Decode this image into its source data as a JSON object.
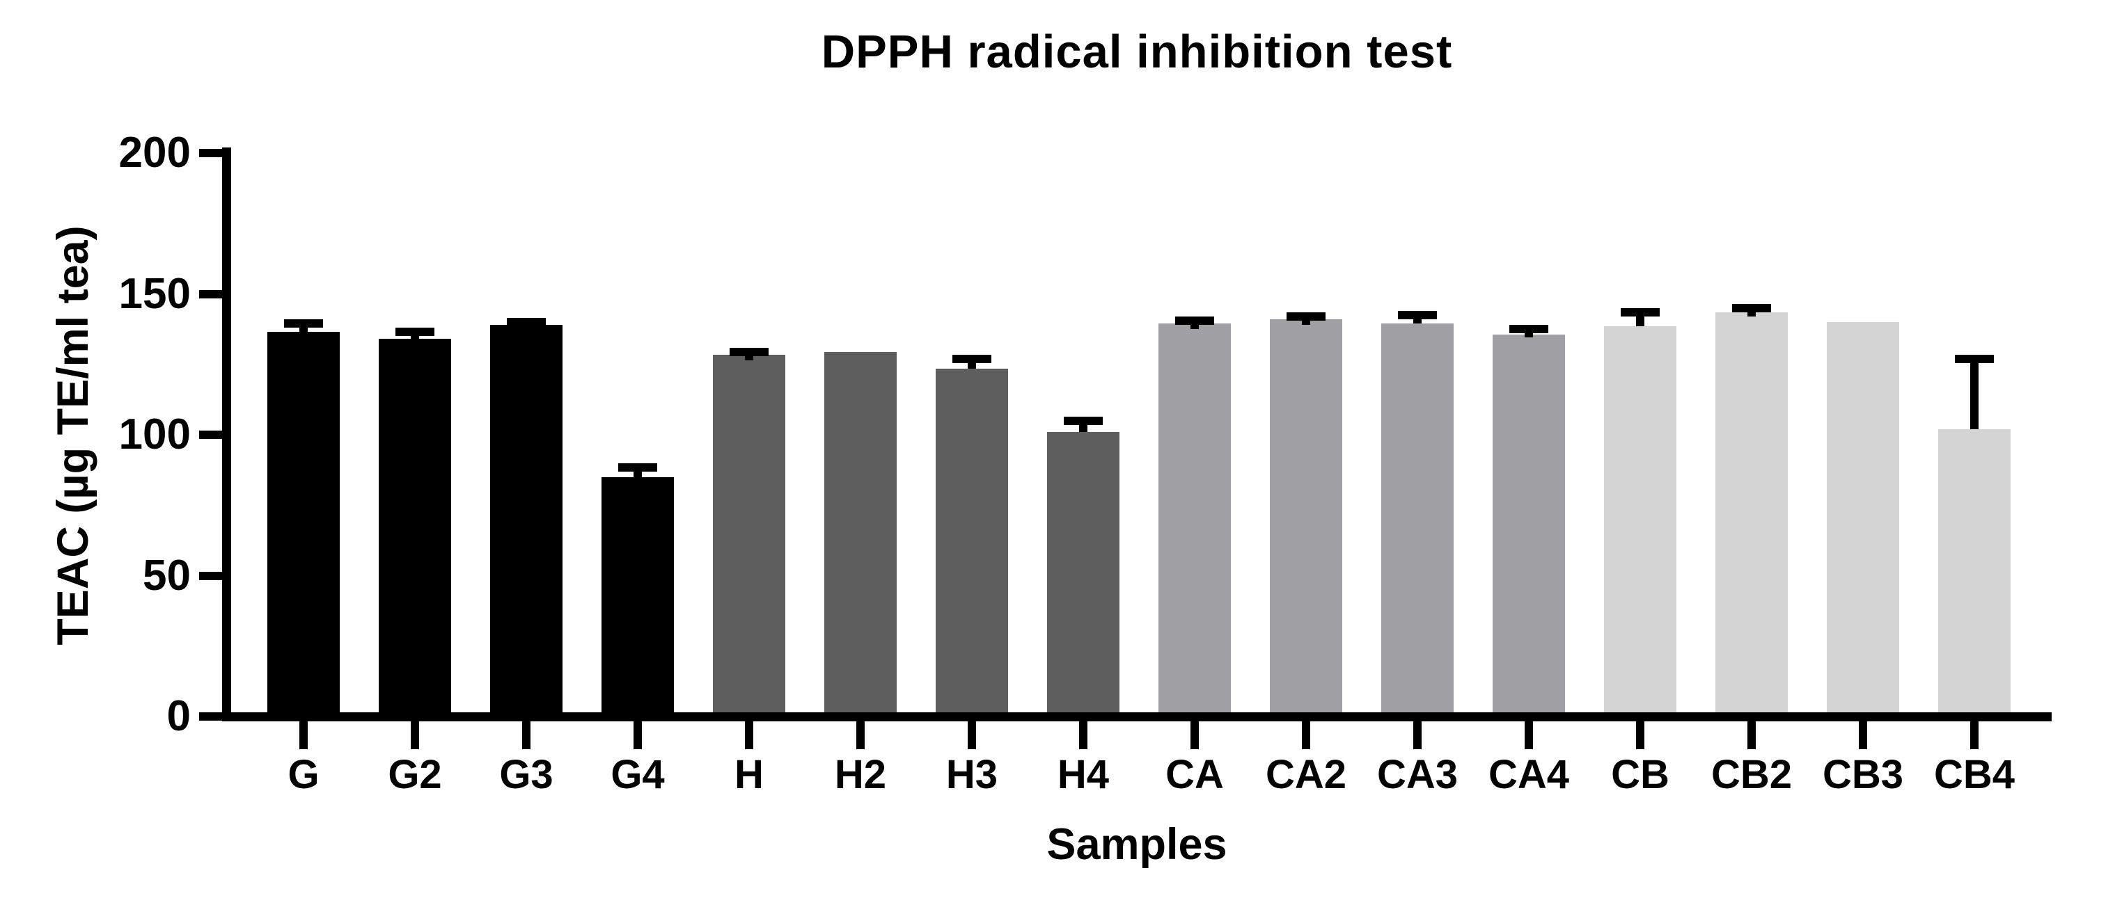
{
  "chart_data": {
    "type": "bar",
    "title": "DPPH radical inhibition test",
    "xlabel": "Samples",
    "ylabel": "TEAC (µg TE/ml tea)",
    "ylim": [
      0,
      200
    ],
    "yticks": [
      0,
      50,
      100,
      150,
      200
    ],
    "grid": false,
    "legend": "none",
    "error_bars": "upper only, black caps",
    "group_colors": {
      "G": "#000000",
      "H": "#5e5e5e",
      "CA": "#a0a0a4",
      "CB": "#d4d4d4"
    },
    "categories": [
      "G",
      "G2",
      "G3",
      "G4",
      "H",
      "H2",
      "H3",
      "H4",
      "CA",
      "CA2",
      "CA3",
      "CA4",
      "CB",
      "CB2",
      "CB3",
      "CB4"
    ],
    "samples": [
      {
        "label": "G",
        "value": 136.5,
        "error": 3,
        "group": "G"
      },
      {
        "label": "G2",
        "value": 134,
        "error": 2.5,
        "group": "G"
      },
      {
        "label": "G3",
        "value": 139,
        "error": 1,
        "group": "G"
      },
      {
        "label": "G4",
        "value": 85,
        "error": 3.5,
        "group": "G"
      },
      {
        "label": "H",
        "value": 128.5,
        "error": 1,
        "group": "H"
      },
      {
        "label": "H2",
        "value": 129.5,
        "error": 0,
        "group": "H"
      },
      {
        "label": "H3",
        "value": 123.5,
        "error": 3.5,
        "group": "H"
      },
      {
        "label": "H4",
        "value": 101,
        "error": 4,
        "group": "H"
      },
      {
        "label": "CA",
        "value": 139.5,
        "error": 1,
        "group": "CA"
      },
      {
        "label": "CA2",
        "value": 141,
        "error": 1,
        "group": "CA"
      },
      {
        "label": "CA3",
        "value": 139.5,
        "error": 3,
        "group": "CA"
      },
      {
        "label": "CA4",
        "value": 135.5,
        "error": 2,
        "group": "CA"
      },
      {
        "label": "CB",
        "value": 138.5,
        "error": 5,
        "group": "CB"
      },
      {
        "label": "CB2",
        "value": 143.5,
        "error": 1.5,
        "group": "CB"
      },
      {
        "label": "CB3",
        "value": 140,
        "error": 0,
        "group": "CB"
      },
      {
        "label": "CB4",
        "value": 102,
        "error": 25,
        "group": "CB"
      }
    ]
  }
}
